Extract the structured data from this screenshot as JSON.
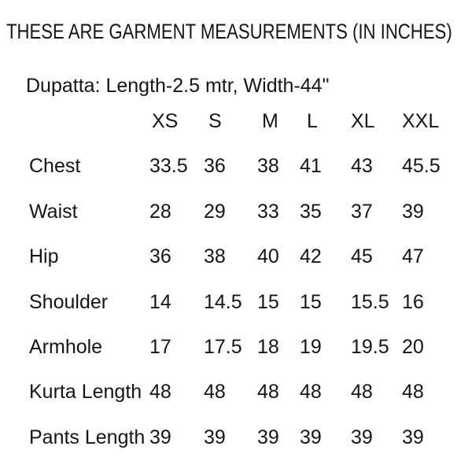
{
  "title": "THESE ARE GARMENT MEASUREMENTS (IN INCHES)",
  "dupatta_note": "Dupatta: Length-2.5 mtr, Width-44\"",
  "colors": {
    "background": "#ffffff",
    "text": "#151515"
  },
  "chart_data": {
    "type": "table",
    "title": "THESE ARE GARMENT MEASUREMENTS (IN INCHES)",
    "note": "Dupatta: Length-2.5 mtr, Width-44\"",
    "columns": [
      "XS",
      "S",
      "M",
      "L",
      "XL",
      "XXL"
    ],
    "rows": [
      {
        "label": "Chest",
        "values": [
          "33.5",
          "36",
          "38",
          "41",
          "43",
          "45.5"
        ]
      },
      {
        "label": "Waist",
        "values": [
          "28",
          "29",
          "33",
          "35",
          "37",
          "39"
        ]
      },
      {
        "label": "Hip",
        "values": [
          "36",
          "38",
          "40",
          "42",
          "45",
          "47"
        ]
      },
      {
        "label": "Shoulder",
        "values": [
          "14",
          "14.5",
          "15",
          "15",
          "15.5",
          "16"
        ]
      },
      {
        "label": "Armhole",
        "values": [
          "17",
          "17.5",
          "18",
          "19",
          "19.5",
          "20"
        ]
      },
      {
        "label": "Kurta Length",
        "values": [
          "48",
          "48",
          "48",
          "48",
          "48",
          "48"
        ]
      },
      {
        "label": "Pants Length",
        "values": [
          "39",
          "39",
          "39",
          "39",
          "39",
          "39"
        ]
      }
    ]
  }
}
